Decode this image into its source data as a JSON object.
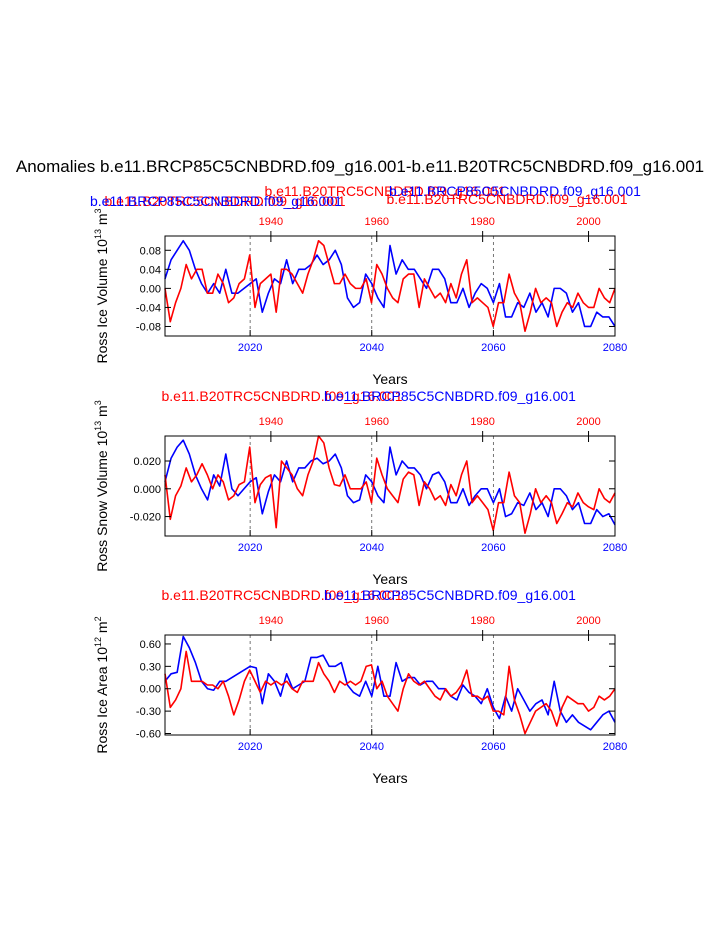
{
  "page_title": "Anomalies b.e11.BRCP85C5CNBDRD.f09_g16.001-b.e11.B20TRC5CNBDRD.f09_g16.001",
  "colors": {
    "future": "#0000ff",
    "historical": "#ff0000",
    "axis": "#000000"
  },
  "chart_data": [
    {
      "type": "line",
      "id": "ice-volume",
      "ylabel": "Ross Ice Volume 10^13 m^3",
      "ylabel_base": "Ross Ice Volume 10",
      "ylabel_exp": "13",
      "ylabel_unit": " m",
      "ylabel_unit_exp": "3",
      "xlabel": "Years",
      "top_title_left": "b.e11.BRCP85C5CNBDRD.f09_g16.001",
      "top_title_center": "b.e11.B20TRC5CNBDRD.f09_g16.001",
      "top_title_right": "b.e11.B20TRC5CNBDRD.f09_g16.001",
      "top_title_overlap": "b.e11.BRCP85C5CNBDRD.f09_g16.001",
      "xlim_bottom": [
        2006,
        2080
      ],
      "xlim_top": [
        1920,
        2005
      ],
      "ylim": [
        -0.1,
        0.11
      ],
      "yticks": [
        -0.08,
        -0.04,
        0.0,
        0.04,
        0.08
      ],
      "ytick_labels": [
        "-0.08",
        "-0.04",
        "0.00",
        "0.04",
        "0.08"
      ],
      "xticks_bottom": [
        2020,
        2040,
        2060,
        2080
      ],
      "xticks_top": [
        1940,
        1960,
        1980,
        2000
      ],
      "grid_x": [
        2020,
        2040,
        2060
      ],
      "series": [
        {
          "name": "b.e11.BRCP85C5CNBDRD.f09_g16.001",
          "axis": "bottom",
          "x_start": 2006,
          "values": [
            0.02,
            0.06,
            0.08,
            0.1,
            0.08,
            0.04,
            0.01,
            -0.01,
            0.01,
            -0.01,
            0.04,
            -0.01,
            -0.01,
            0.0,
            0.01,
            0.02,
            -0.05,
            -0.01,
            0.02,
            0.01,
            0.06,
            0.01,
            0.04,
            0.04,
            0.05,
            0.07,
            0.05,
            0.06,
            0.08,
            0.05,
            -0.02,
            -0.04,
            -0.03,
            0.03,
            0.01,
            -0.02,
            -0.04,
            0.09,
            0.03,
            0.06,
            0.04,
            0.04,
            0.02,
            0.0,
            0.04,
            0.04,
            0.02,
            -0.03,
            -0.03,
            0.0,
            -0.04,
            -0.01,
            0.01,
            0.0,
            -0.03,
            0.01,
            -0.06,
            -0.06,
            -0.03,
            -0.04,
            -0.01,
            -0.05,
            -0.03,
            -0.06,
            0.0,
            0.0,
            -0.01,
            -0.05,
            -0.03,
            -0.08,
            -0.08,
            -0.05,
            -0.06,
            -0.06,
            -0.08
          ]
        },
        {
          "name": "b.e11.B20TRC5CNBDRD.f09_g16.001",
          "axis": "top",
          "x_start": 1920,
          "values": [
            0.0,
            -0.07,
            -0.03,
            0.0,
            0.05,
            0.02,
            0.04,
            0.04,
            -0.01,
            -0.01,
            0.03,
            0.01,
            -0.03,
            -0.02,
            0.01,
            0.02,
            0.07,
            -0.04,
            0.01,
            0.02,
            0.03,
            -0.05,
            0.04,
            0.04,
            0.03,
            0.01,
            -0.01,
            0.03,
            0.06,
            0.1,
            0.09,
            0.05,
            0.01,
            0.01,
            0.03,
            0.01,
            0.0,
            0.0,
            0.02,
            -0.03,
            0.05,
            0.03,
            0.0,
            -0.02,
            -0.03,
            0.02,
            0.03,
            0.03,
            -0.04,
            0.02,
            0.0,
            -0.02,
            -0.01,
            -0.03,
            0.01,
            -0.02,
            0.03,
            0.06,
            -0.03,
            -0.02,
            -0.03,
            -0.04,
            -0.08,
            -0.03,
            -0.03,
            0.03,
            -0.01,
            -0.03,
            -0.09,
            -0.05,
            0.0,
            -0.03,
            -0.02,
            -0.03,
            -0.08,
            -0.05,
            -0.03,
            -0.04,
            -0.01,
            -0.03,
            -0.04,
            -0.04,
            0.0,
            -0.02,
            -0.03,
            0.0
          ]
        }
      ]
    },
    {
      "type": "line",
      "id": "snow-volume",
      "ylabel": "Ross Snow Volume 10^13 m^3",
      "ylabel_base": "Ross Snow Volume 10",
      "ylabel_exp": "13",
      "ylabel_unit": " m",
      "ylabel_unit_exp": "3",
      "xlabel": "Years",
      "top_title_left": "b.e11.B20TRC5CNBDRD.f09_g16.001",
      "top_title_right": "b.e11.BRCP85C5CNBDRD.f09_g16.001",
      "xlim_bottom": [
        2006,
        2080
      ],
      "xlim_top": [
        1920,
        2005
      ],
      "ylim": [
        -0.034,
        0.038
      ],
      "yticks": [
        -0.02,
        0.0,
        0.02
      ],
      "ytick_labels": [
        "-0.020",
        "0.000",
        "0.020"
      ],
      "xticks_bottom": [
        2020,
        2040,
        2060,
        2080
      ],
      "xticks_top": [
        1940,
        1960,
        1980,
        2000
      ],
      "grid_x": [
        2020,
        2040,
        2060
      ],
      "series": [
        {
          "name": "b.e11.BRCP85C5CNBDRD.f09_g16.001",
          "axis": "bottom",
          "x_start": 2006,
          "values": [
            0.005,
            0.022,
            0.03,
            0.035,
            0.025,
            0.01,
            0.0,
            -0.008,
            0.01,
            0.002,
            0.025,
            0.0,
            -0.005,
            0.0,
            0.005,
            0.008,
            -0.018,
            -0.002,
            0.01,
            0.005,
            0.02,
            0.005,
            0.015,
            0.015,
            0.02,
            0.022,
            0.018,
            0.02,
            0.025,
            0.015,
            -0.005,
            -0.01,
            -0.008,
            0.01,
            0.005,
            -0.005,
            -0.01,
            0.03,
            0.01,
            0.02,
            0.015,
            0.015,
            0.01,
            0.0,
            0.01,
            0.012,
            0.005,
            -0.01,
            -0.01,
            0.0,
            -0.012,
            -0.005,
            0.0,
            0.0,
            -0.01,
            0.0,
            -0.02,
            -0.018,
            -0.01,
            -0.012,
            -0.003,
            -0.015,
            -0.01,
            -0.02,
            0.0,
            0.0,
            -0.005,
            -0.015,
            -0.01,
            -0.025,
            -0.025,
            -0.015,
            -0.02,
            -0.018,
            -0.026
          ]
        },
        {
          "name": "b.e11.B20TRC5CNBDRD.f09_g16.001",
          "axis": "top",
          "x_start": 1920,
          "values": [
            0.01,
            -0.022,
            -0.005,
            0.002,
            0.015,
            0.005,
            0.01,
            0.018,
            0.01,
            0.0,
            0.01,
            0.005,
            -0.008,
            -0.005,
            0.003,
            0.005,
            0.03,
            -0.01,
            0.003,
            0.008,
            0.01,
            -0.028,
            0.02,
            0.015,
            0.01,
            0.0,
            -0.005,
            0.01,
            0.02,
            0.038,
            0.033,
            0.015,
            0.003,
            0.002,
            0.01,
            0.0,
            0.0,
            0.0,
            0.005,
            -0.01,
            0.022,
            0.01,
            0.0,
            -0.005,
            -0.01,
            0.007,
            0.012,
            0.01,
            -0.012,
            0.005,
            0.0,
            -0.008,
            -0.005,
            -0.012,
            0.003,
            -0.005,
            0.01,
            0.02,
            -0.01,
            -0.005,
            -0.01,
            -0.015,
            -0.03,
            -0.01,
            -0.01,
            0.012,
            -0.005,
            -0.01,
            -0.032,
            -0.018,
            0.0,
            -0.01,
            -0.005,
            -0.01,
            -0.025,
            -0.018,
            -0.01,
            -0.013,
            -0.003,
            -0.01,
            -0.013,
            -0.015,
            0.0,
            -0.007,
            -0.01,
            -0.003
          ]
        }
      ]
    },
    {
      "type": "line",
      "id": "ice-area",
      "ylabel": "Ross Ice Area 10^12 m^2",
      "ylabel_base": "Ross Ice Area 10",
      "ylabel_exp": "12",
      "ylabel_unit": " m",
      "ylabel_unit_exp": "2",
      "xlabel": "Years",
      "top_title_left": "b.e11.B20TRC5CNBDRD.f09_g16.001",
      "top_title_right": "b.e11.BRCP85C5CNBDRD.f09_g16.001",
      "xlim_bottom": [
        2006,
        2080
      ],
      "xlim_top": [
        1920,
        2005
      ],
      "ylim": [
        -0.62,
        0.72
      ],
      "yticks": [
        -0.6,
        -0.3,
        0.0,
        0.3,
        0.6
      ],
      "ytick_labels": [
        "-0.60",
        "-0.30",
        "0.00",
        "0.30",
        "0.60"
      ],
      "xticks_bottom": [
        2020,
        2040,
        2060,
        2080
      ],
      "xticks_top": [
        1940,
        1960,
        1980,
        2000
      ],
      "grid_x": [
        2020,
        2040,
        2060
      ],
      "series": [
        {
          "name": "b.e11.BRCP85C5CNBDRD.f09_g16.001",
          "axis": "bottom",
          "x_start": 2006,
          "values": [
            0.1,
            0.2,
            0.22,
            0.7,
            0.55,
            0.35,
            0.1,
            0.0,
            -0.02,
            0.1,
            0.1,
            0.15,
            0.2,
            0.25,
            0.3,
            0.28,
            -0.2,
            0.2,
            0.1,
            -0.1,
            0.2,
            0.0,
            0.05,
            0.1,
            0.42,
            0.42,
            0.45,
            0.3,
            0.3,
            0.35,
            0.05,
            -0.05,
            -0.1,
            0.1,
            -0.1,
            0.3,
            -0.1,
            -0.1,
            0.35,
            0.1,
            0.15,
            0.15,
            0.05,
            0.1,
            0.1,
            0.0,
            0.0,
            -0.1,
            -0.15,
            0.05,
            -0.05,
            -0.1,
            -0.2,
            0.0,
            -0.25,
            -0.4,
            -0.1,
            -0.3,
            0.0,
            -0.15,
            -0.3,
            -0.2,
            -0.15,
            -0.35,
            0.1,
            -0.3,
            -0.45,
            -0.35,
            -0.45,
            -0.5,
            -0.55,
            -0.45,
            -0.35,
            -0.3,
            -0.45
          ]
        },
        {
          "name": "b.e11.B20TRC5CNBDRD.f09_g16.001",
          "axis": "top",
          "x_start": 1920,
          "values": [
            0.2,
            -0.25,
            -0.15,
            0.0,
            0.5,
            0.1,
            0.1,
            0.1,
            0.05,
            0.05,
            0.0,
            0.1,
            -0.1,
            -0.35,
            -0.15,
            0.1,
            0.25,
            0.1,
            -0.05,
            0.1,
            0.05,
            0.1,
            0.05,
            0.1,
            0.0,
            -0.05,
            0.1,
            0.1,
            0.1,
            0.35,
            0.2,
            0.1,
            -0.05,
            0.1,
            0.05,
            0.1,
            0.05,
            0.1,
            0.3,
            0.32,
            0.0,
            0.1,
            -0.1,
            -0.2,
            -0.3,
            0.0,
            0.2,
            0.1,
            0.05,
            0.1,
            0.0,
            -0.1,
            -0.15,
            0.0,
            -0.1,
            -0.05,
            0.05,
            0.25,
            -0.1,
            -0.1,
            -0.15,
            -0.1,
            -0.3,
            -0.3,
            -0.35,
            0.3,
            -0.15,
            -0.35,
            -0.6,
            -0.45,
            -0.3,
            -0.25,
            -0.2,
            -0.3,
            -0.5,
            -0.25,
            -0.1,
            -0.15,
            -0.2,
            -0.2,
            -0.3,
            -0.25,
            -0.1,
            -0.15,
            -0.1,
            0.0
          ]
        }
      ]
    }
  ]
}
